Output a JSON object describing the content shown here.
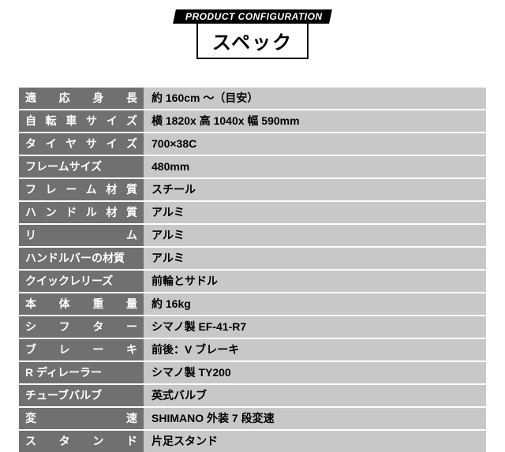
{
  "header": {
    "badge": "PRODUCT CONFIGURATION",
    "title": "スペック"
  },
  "colors": {
    "label_bg": "#707070",
    "label_fg": "#ffffff",
    "value_bg": "#c8c8c8",
    "value_fg": "#000000",
    "badge_bg": "#000000",
    "badge_fg": "#ffffff"
  },
  "spec": {
    "rows": [
      {
        "label": "適応身長",
        "value": "約 160cm ～（目安）",
        "justify": true
      },
      {
        "label": "自転車サイズ",
        "value": "横 1820x 高 1040x 幅 590mm",
        "justify": true
      },
      {
        "label": "タイヤサイズ",
        "value": "700×38C",
        "justify": true
      },
      {
        "label": "フレームサイズ",
        "value": "480mm",
        "justify": false
      },
      {
        "label": "フレーム材質",
        "value": "スチール",
        "justify": true
      },
      {
        "label": "ハンドル材質",
        "value": "アルミ",
        "justify": true
      },
      {
        "label": "リム",
        "value": "アルミ",
        "justify": true
      },
      {
        "label": "ハンドルバーの材質",
        "value": "アルミ",
        "justify": false
      },
      {
        "label": "クイックレリーズ",
        "value": "前輪とサドル",
        "justify": false
      },
      {
        "label": "本体重量",
        "value": "約 16kg",
        "justify": true
      },
      {
        "label": "シフター",
        "value": "シマノ製 EF-41-R7",
        "justify": true
      },
      {
        "label": "ブレーキ",
        "value": "前後：V ブレーキ",
        "justify": true
      },
      {
        "label": "R ディレーラー",
        "value": "シマノ製 TY200",
        "justify": false
      },
      {
        "label": "チューブバルブ",
        "value": "英式バルブ",
        "justify": false
      },
      {
        "label": "変速",
        "value": "SHIMANO 外装 7 段変速",
        "justify": true
      },
      {
        "label": "スタンド",
        "value": "片足スタンド",
        "justify": true
      }
    ]
  }
}
